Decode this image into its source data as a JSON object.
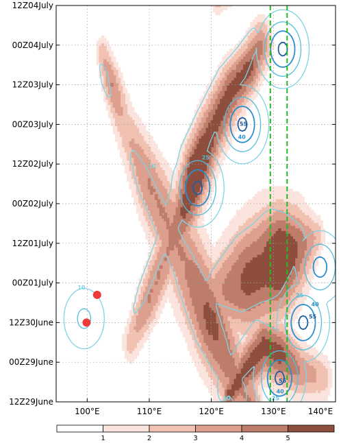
{
  "chart_data": {
    "type": "heatmap",
    "title": "",
    "xlabel": "",
    "ylabel": "",
    "x_range": [
      95,
      140
    ],
    "x_ticks": [
      100,
      110,
      120,
      130,
      140
    ],
    "x_tick_labels": [
      "100°E",
      "110°E",
      "120°E",
      "130°E",
      "140°E"
    ],
    "y_tick_labels": [
      "12Z29June",
      "00Z29June",
      "12Z30June",
      "00Z01July",
      "12Z01July",
      "00Z02July",
      "12Z02July",
      "00Z03July",
      "12Z03July",
      "00Z04July",
      "12Z04July"
    ],
    "grid": "dotted",
    "shading": {
      "levels": [
        1,
        2,
        3,
        4,
        5
      ],
      "colors": [
        "#fbe4dd",
        "#f1c1b1",
        "#dea08e",
        "#bd7d6a",
        "#8e4e3d"
      ]
    },
    "contours": [
      {
        "value": 10,
        "color": "#7fd3e3",
        "label": "10"
      },
      {
        "value": 25,
        "color": "#53bedc",
        "label": "25"
      },
      {
        "value": 40,
        "color": "#2a8fcd",
        "label": "40"
      },
      {
        "value": 55,
        "color": "#1c5fa5",
        "label": "55"
      }
    ],
    "reference_lines": [
      {
        "lon": 129.5,
        "color": "#22bb22",
        "style": "dashed"
      },
      {
        "lon": 132.2,
        "color": "#22bb22",
        "style": "dashed"
      }
    ],
    "markers": [
      {
        "lon": 101.6,
        "time_index": 2.7,
        "color": "#ef3a3a"
      },
      {
        "lon": 99.9,
        "time_index": 2.0,
        "color": "#ef3a3a"
      }
    ],
    "shaded_bands": [
      {
        "name": "tilted band A",
        "points": [
          [
            102.5,
            8.8
          ],
          [
            104,
            8.0
          ],
          [
            106,
            7.0
          ],
          [
            110,
            5.5
          ],
          [
            113,
            4.5
          ],
          [
            116,
            3.5
          ],
          [
            120,
            2.0
          ],
          [
            124,
            0.5
          ],
          [
            126,
            0
          ]
        ],
        "widths": [
          1.0,
          1.3,
          1.6,
          2.2,
          2.6,
          3.0,
          2.8,
          2.4,
          2.0
        ],
        "peaks": [
          2.0,
          3.0,
          2.0,
          3.0,
          3.0,
          3.0,
          4.0,
          3.0,
          3.0
        ]
      },
      {
        "name": "tilted band B",
        "points": [
          [
            107,
            1.5
          ],
          [
            110,
            2.6
          ],
          [
            113,
            3.8
          ],
          [
            116,
            5.0
          ],
          [
            117.5,
            5.8
          ],
          [
            120,
            6.8
          ],
          [
            123,
            7.8
          ],
          [
            126,
            8.4
          ],
          [
            128,
            9.0
          ]
        ],
        "widths": [
          1.2,
          1.6,
          1.8,
          2.0,
          2.0,
          2.0,
          1.8,
          1.6,
          1.6
        ],
        "peaks": [
          2.0,
          3.0,
          3.0,
          4.0,
          5.0,
          4.0,
          4.0,
          4.0,
          3.0
        ]
      },
      {
        "name": "upper band",
        "points": [
          [
            121,
            10.2
          ],
          [
            124,
            10.6
          ],
          [
            127,
            10.9
          ],
          [
            130,
            11.0
          ]
        ],
        "widths": [
          1.0,
          1.2,
          1.2,
          1.0
        ],
        "peaks": [
          2.0,
          2.0,
          2.0,
          2.0
        ]
      },
      {
        "name": "east blob",
        "points": [
          [
            118,
            2.4
          ],
          [
            122,
            2.8
          ],
          [
            126,
            3.1
          ],
          [
            129,
            3.4
          ],
          [
            131,
            3.6
          ],
          [
            133,
            3.8
          ],
          [
            135,
            4.0
          ],
          [
            137,
            4.2
          ]
        ],
        "widths": [
          1.8,
          2.6,
          3.4,
          3.6,
          3.2,
          2.8,
          2.0,
          1.2
        ],
        "peaks": [
          2.0,
          3.0,
          4.0,
          4.0,
          5.0,
          4.0,
          3.0,
          2.0
        ]
      },
      {
        "name": "bottom band",
        "points": [
          [
            123,
            0.2
          ],
          [
            126,
            0.9
          ],
          [
            128.5,
            1.4
          ],
          [
            131,
            1.2
          ],
          [
            134,
            0.8
          ],
          [
            138,
            0.6
          ]
        ],
        "widths": [
          1.2,
          1.6,
          1.8,
          1.8,
          1.6,
          1.4
        ],
        "peaks": [
          4.0,
          4.0,
          4.0,
          4.0,
          3.0,
          2.0
        ]
      }
    ],
    "contour_centers": [
      {
        "name": "center 1",
        "lon": 117.8,
        "time_index": 5.4,
        "peak": 58
      },
      {
        "name": "center 2",
        "lon": 125.0,
        "time_index": 7.0,
        "peak": 58
      },
      {
        "name": "center 3",
        "lon": 131.5,
        "time_index": 8.9,
        "peak": 58
      },
      {
        "name": "center 4",
        "lon": 134.8,
        "time_index": 2.0,
        "peak": 58
      },
      {
        "name": "center 5",
        "lon": 131.0,
        "time_index": 0.6,
        "peak": 58
      },
      {
        "name": "center 6",
        "lon": 137.5,
        "time_index": 3.4,
        "peak": 45
      },
      {
        "name": "center 7",
        "lon": 99.5,
        "time_index": 2.1,
        "peak": 28
      }
    ]
  }
}
